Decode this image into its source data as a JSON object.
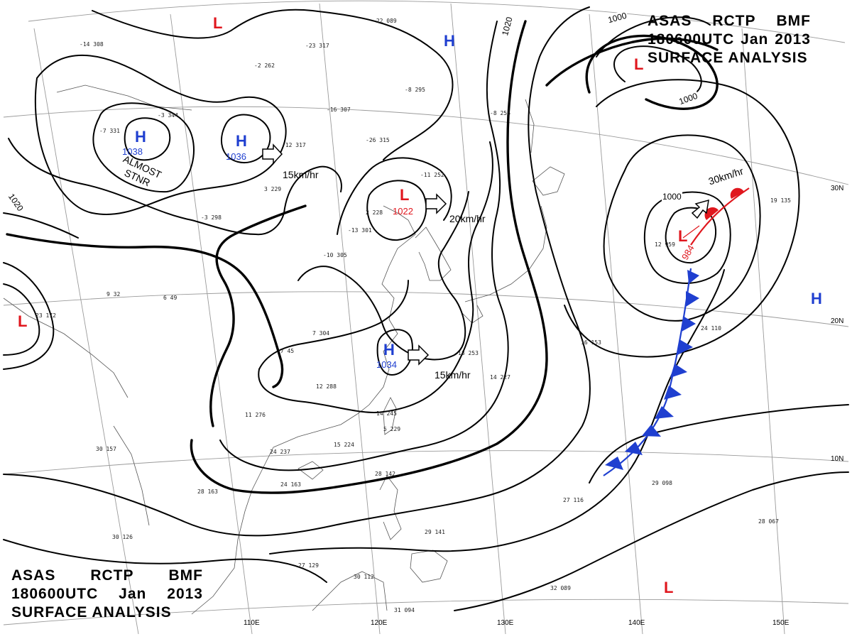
{
  "title_top_right": {
    "line1": [
      "ASAS",
      "RCTP",
      "BMF"
    ],
    "line2": [
      "180600UTC",
      "Jan",
      "2013"
    ],
    "line3": "SURFACE  ANALYSIS"
  },
  "title_bottom_left": {
    "line1": [
      "ASAS",
      "RCTP",
      "BMF"
    ],
    "line2": [
      "180600UTC",
      "Jan",
      "2013"
    ],
    "line3": "SURFACE  ANALYSIS"
  },
  "longitude_labels": [
    "110E",
    "120E",
    "130E",
    "140E",
    "150E"
  ],
  "latitude_labels": [
    "30N",
    "20N",
    "10N"
  ],
  "isobar_labels": [
    "1020",
    "1020",
    "1000",
    "1000",
    "1000"
  ],
  "pressure_centers": [
    {
      "type": "H",
      "value": "1038"
    },
    {
      "type": "H",
      "value": "1036"
    },
    {
      "type": "H",
      "value": "1034"
    },
    {
      "type": "H",
      "value": ""
    },
    {
      "type": "H",
      "value": ""
    },
    {
      "type": "L",
      "value": "1022"
    },
    {
      "type": "L",
      "value": "984"
    },
    {
      "type": "L",
      "value": ""
    },
    {
      "type": "L",
      "value": ""
    },
    {
      "type": "L",
      "value": ""
    },
    {
      "type": "L",
      "value": ""
    }
  ],
  "motion_labels": [
    "15km/hr",
    "20km/hr",
    "15km/hr",
    "30km/hr"
  ],
  "almost_stnr": [
    "ALMOST",
    "STNR"
  ],
  "station_plots": [
    "-14 308",
    "-2 262",
    "-23 317",
    "-22 089",
    "-16 307",
    "-8 295",
    "-12 317",
    "-26 315",
    "-11 252",
    "-3 344",
    "-7 331",
    "-8 256",
    "2 228",
    "-13 301",
    "-3 298",
    "3 229",
    "-10 305",
    "23 172",
    "9 32",
    "6 49",
    "7 304",
    "-7 45",
    "12 288",
    "14 245",
    "5 229",
    "11 276",
    "24 237",
    "15 224",
    "24 163",
    "28 163",
    "30 157",
    "30 126",
    "27 129",
    "28 142",
    "30 112",
    "31 094",
    "29 141",
    "13 253",
    "14 227",
    "16 153",
    "24 110",
    "27 116",
    "29 098",
    "28 067",
    "32 089",
    "19 135",
    "12 959"
  ],
  "colors": {
    "high": "#1f3fd0",
    "low": "#e0171e",
    "cold_front": "#1f3fd0",
    "warm_front": "#e0171e",
    "isobar": "#000000",
    "coast": "#555555",
    "grid": "#9a9a9a"
  }
}
